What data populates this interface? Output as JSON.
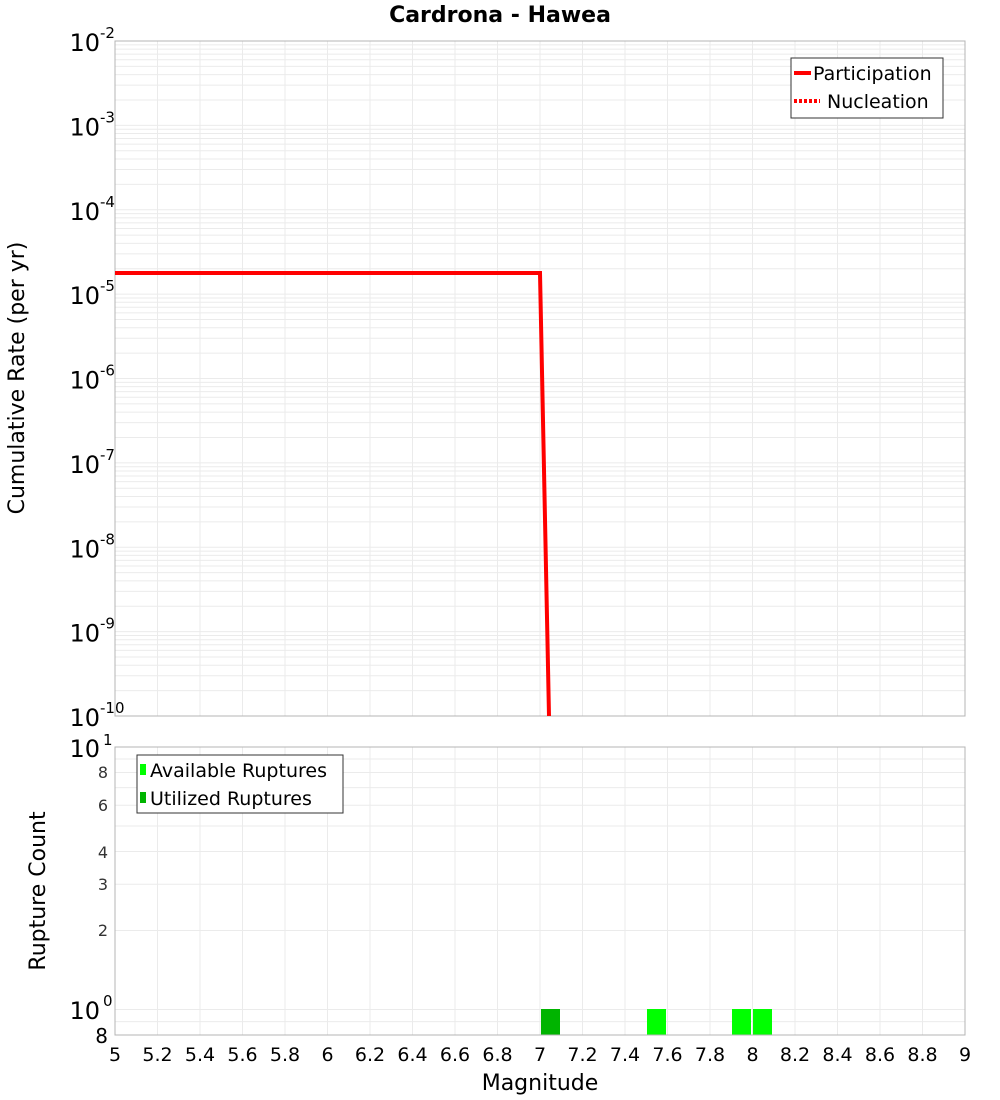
{
  "chart_data": [
    {
      "type": "line",
      "title": "Cardrona - Hawea",
      "xlabel": "Magnitude",
      "ylabel": "Cumulative Rate (per yr)",
      "yscale": "log",
      "xlim": [
        5,
        9
      ],
      "ylim": [
        1e-10,
        0.01
      ],
      "grid": true,
      "legend_position": "upper right",
      "y_tick_labels": [
        "10^-2",
        "10^-3",
        "10^-4",
        "10^-5",
        "10^-6",
        "10^-7",
        "10^-8",
        "10^-9",
        "10^-10"
      ],
      "series": [
        {
          "name": "Participation",
          "style": "solid",
          "color": "#ff0000",
          "x": [
            5.0,
            7.0,
            7.05
          ],
          "y": [
            1.8e-05,
            1.8e-05,
            1e-10
          ]
        },
        {
          "name": "Nucleation",
          "style": "dotted",
          "color": "#ff0000",
          "x": [
            5.0,
            7.0,
            7.05
          ],
          "y": [
            1.8e-05,
            1.8e-05,
            1e-10
          ]
        }
      ]
    },
    {
      "type": "bar",
      "xlabel": "Magnitude",
      "ylabel": "Rupture Count",
      "yscale": "log",
      "xlim": [
        5,
        9
      ],
      "ylim": [
        0.8,
        10
      ],
      "grid": true,
      "legend_position": "upper left",
      "x_tick_labels": [
        "5",
        "5.2",
        "5.4",
        "5.6",
        "5.8",
        "6",
        "6.2",
        "6.4",
        "6.6",
        "6.8",
        "7",
        "7.2",
        "7.4",
        "7.6",
        "7.8",
        "8",
        "8.2",
        "8.4",
        "8.6",
        "8.8",
        "9"
      ],
      "y_tick_labels": [
        "10^1",
        "8",
        "6",
        "4",
        "3",
        "2",
        "10^0",
        "8"
      ],
      "series": [
        {
          "name": "Available Ruptures",
          "color": "#00ff00",
          "x": [
            7.05,
            7.55,
            7.95,
            8.05
          ],
          "values": [
            1,
            1,
            1,
            1
          ]
        },
        {
          "name": "Utilized Ruptures",
          "color": "#00b400",
          "x": [
            7.05
          ],
          "values": [
            1
          ]
        }
      ]
    }
  ],
  "title": "Cardrona - Hawea",
  "top_plot": {
    "ylabel": "Cumulative Rate (per yr)",
    "yticks": [
      {
        "base": "10",
        "exp": "-2"
      },
      {
        "base": "10",
        "exp": "-3"
      },
      {
        "base": "10",
        "exp": "-4"
      },
      {
        "base": "10",
        "exp": "-5"
      },
      {
        "base": "10",
        "exp": "-6"
      },
      {
        "base": "10",
        "exp": "-7"
      },
      {
        "base": "10",
        "exp": "-8"
      },
      {
        "base": "10",
        "exp": "-9"
      },
      {
        "base": "10",
        "exp": "-10"
      }
    ],
    "legend": {
      "participation": "Participation",
      "nucleation": "Nucleation"
    }
  },
  "bottom_plot": {
    "ylabel": "Rupture Count",
    "xlabel": "Magnitude",
    "ytick_top": {
      "base": "10",
      "exp": "1"
    },
    "ytick_mid": {
      "base": "10",
      "exp": "0"
    },
    "yminor": [
      "8",
      "6",
      "4",
      "3",
      "2",
      "8"
    ],
    "xticks": [
      "5",
      "5.2",
      "5.4",
      "5.6",
      "5.8",
      "6",
      "6.2",
      "6.4",
      "6.6",
      "6.8",
      "7",
      "7.2",
      "7.4",
      "7.6",
      "7.8",
      "8",
      "8.2",
      "8.4",
      "8.6",
      "8.8",
      "9"
    ],
    "legend": {
      "available": "Available Ruptures",
      "utilized": "Utilized Ruptures"
    }
  },
  "colors": {
    "participation": "#ff0000",
    "available": "#00ff00",
    "utilized": "#00b400",
    "grid": "#ebebeb",
    "frame": "#b4b4b4"
  }
}
